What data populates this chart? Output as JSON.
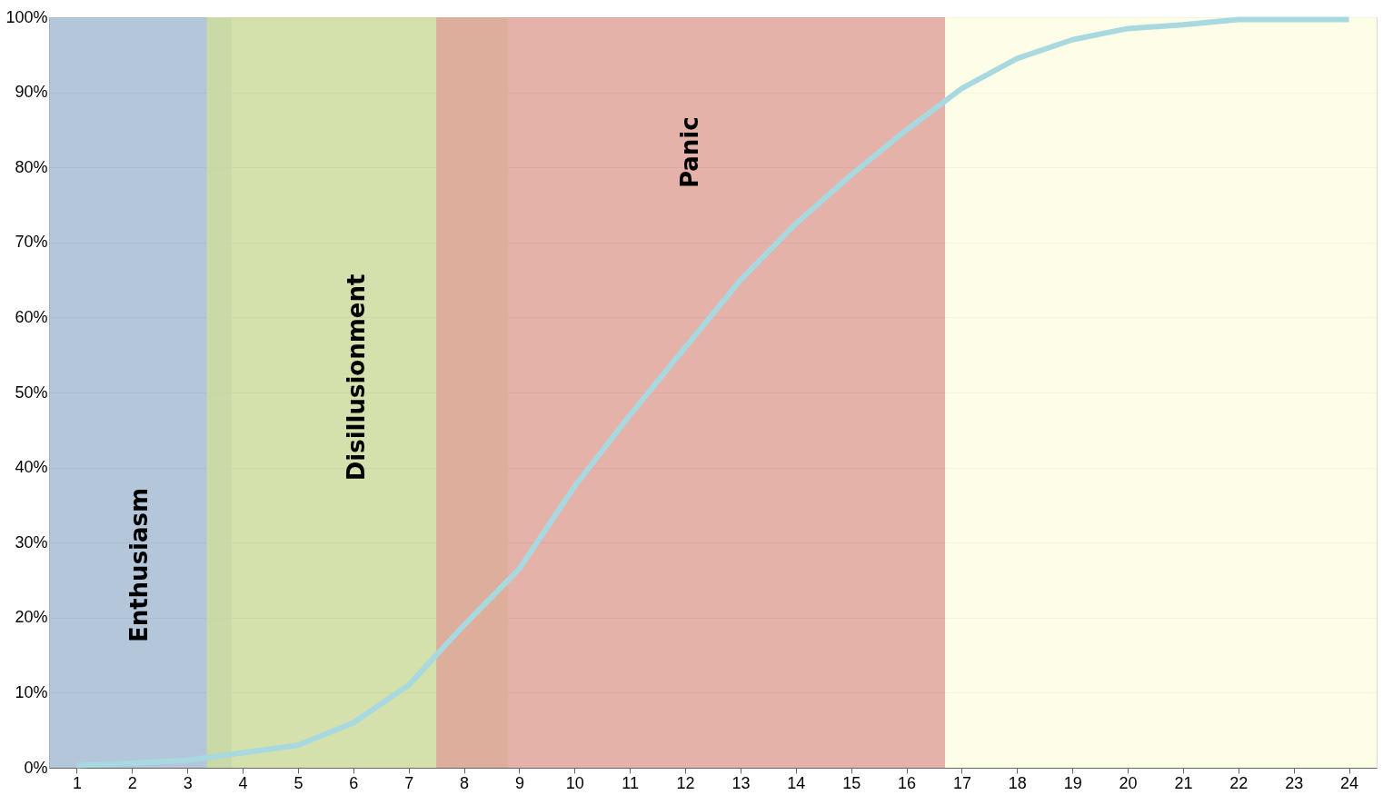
{
  "chart_data": {
    "type": "line",
    "x": [
      1,
      2,
      3,
      4,
      5,
      6,
      7,
      8,
      9,
      10,
      11,
      12,
      13,
      14,
      15,
      16,
      17,
      18,
      19,
      20,
      21,
      22,
      23,
      24
    ],
    "series": [
      {
        "color": "#a8d8e0",
        "values": [
          0.3,
          0.6,
          1,
          2,
          3,
          6,
          11,
          19,
          26.5,
          37.5,
          47,
          56,
          65,
          72.5,
          79,
          85,
          90.5,
          94.5,
          97,
          98.5,
          99,
          99.7,
          99.7,
          99.7
        ]
      }
    ],
    "bands": [
      {
        "axis": "x",
        "from": 0.5,
        "to": 3.8,
        "label": "Enthusiasm",
        "color": "#a7bdd3"
      },
      {
        "axis": "x",
        "from": 3.35,
        "to": 8.8,
        "label": "Disillusionment",
        "color": "#cddc9d"
      },
      {
        "axis": "x",
        "from": 7.5,
        "to": 16.7,
        "label": "Panic",
        "color": "#dfa599"
      },
      {
        "axis": "x",
        "from": 16.7,
        "to": 24.5,
        "color": "#fefee4"
      }
    ],
    "xlim": [
      0.5,
      24.5
    ],
    "xticks": [
      1,
      2,
      3,
      4,
      5,
      6,
      7,
      8,
      9,
      10,
      11,
      12,
      13,
      14,
      15,
      16,
      17,
      18,
      19,
      20,
      21,
      22,
      23,
      24
    ],
    "ylim": [
      0,
      100
    ],
    "yticks": [
      {
        "value": 0,
        "label": "0%"
      },
      {
        "value": 10,
        "label": "10%"
      },
      {
        "value": 20,
        "label": "20%"
      },
      {
        "value": 30,
        "label": "30%"
      },
      {
        "value": 40,
        "label": "40%"
      },
      {
        "value": 50,
        "label": "50%"
      },
      {
        "value": 60,
        "label": "60%"
      },
      {
        "value": 70,
        "label": "70%"
      },
      {
        "value": 80,
        "label": "80%"
      },
      {
        "value": 90,
        "label": "90%"
      },
      {
        "value": 100,
        "label": "100%"
      }
    ],
    "grid": "y",
    "line_style": "solid"
  }
}
